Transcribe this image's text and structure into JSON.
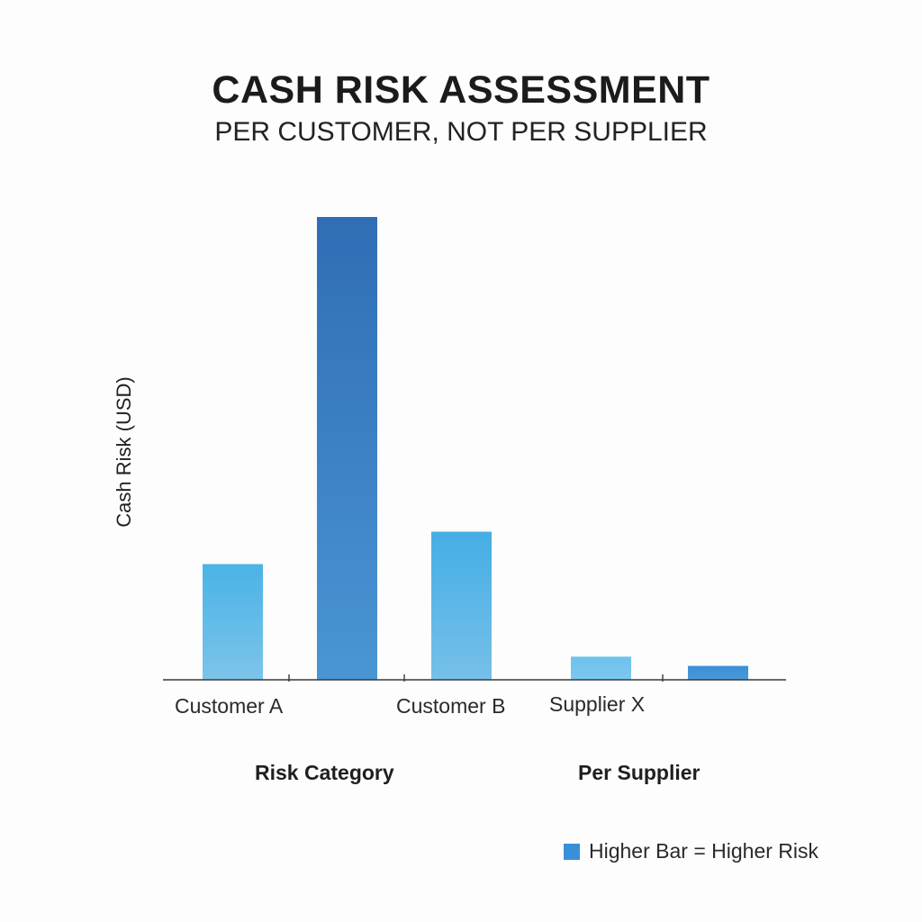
{
  "chart_data": {
    "type": "bar",
    "title": "CASH RISK ASSESSMENT",
    "subtitle": "PER CUSTOMER, NOT PER SUPPLIER",
    "ylabel": "Cash Risk (USD)",
    "xlabel": "",
    "ylim": [
      0,
      100
    ],
    "grid": false,
    "bars": [
      {
        "value": 25,
        "label": "Customer A",
        "color_top": "#4ab3e6",
        "color_bottom": "#7cc4ea"
      },
      {
        "value": 100,
        "label": "",
        "color_top": "#2f6db5",
        "color_bottom": "#4a95d4"
      },
      {
        "value": 32,
        "label": "Customer B",
        "color_top": "#45aee5",
        "color_bottom": "#76c0e9"
      },
      {
        "value": 5,
        "label": "Supplier X",
        "color_top": "#6ec2ec",
        "color_bottom": "#7cc8ee"
      },
      {
        "value": 3,
        "label": "",
        "color_top": "#3b8fd6",
        "color_bottom": "#4a9ada"
      }
    ],
    "group_labels": [
      "Risk Category",
      "Per Supplier"
    ],
    "legend": {
      "label": "Higher Bar = Higher Risk",
      "color": "#3b8fd6",
      "position": "bottom-right"
    }
  }
}
